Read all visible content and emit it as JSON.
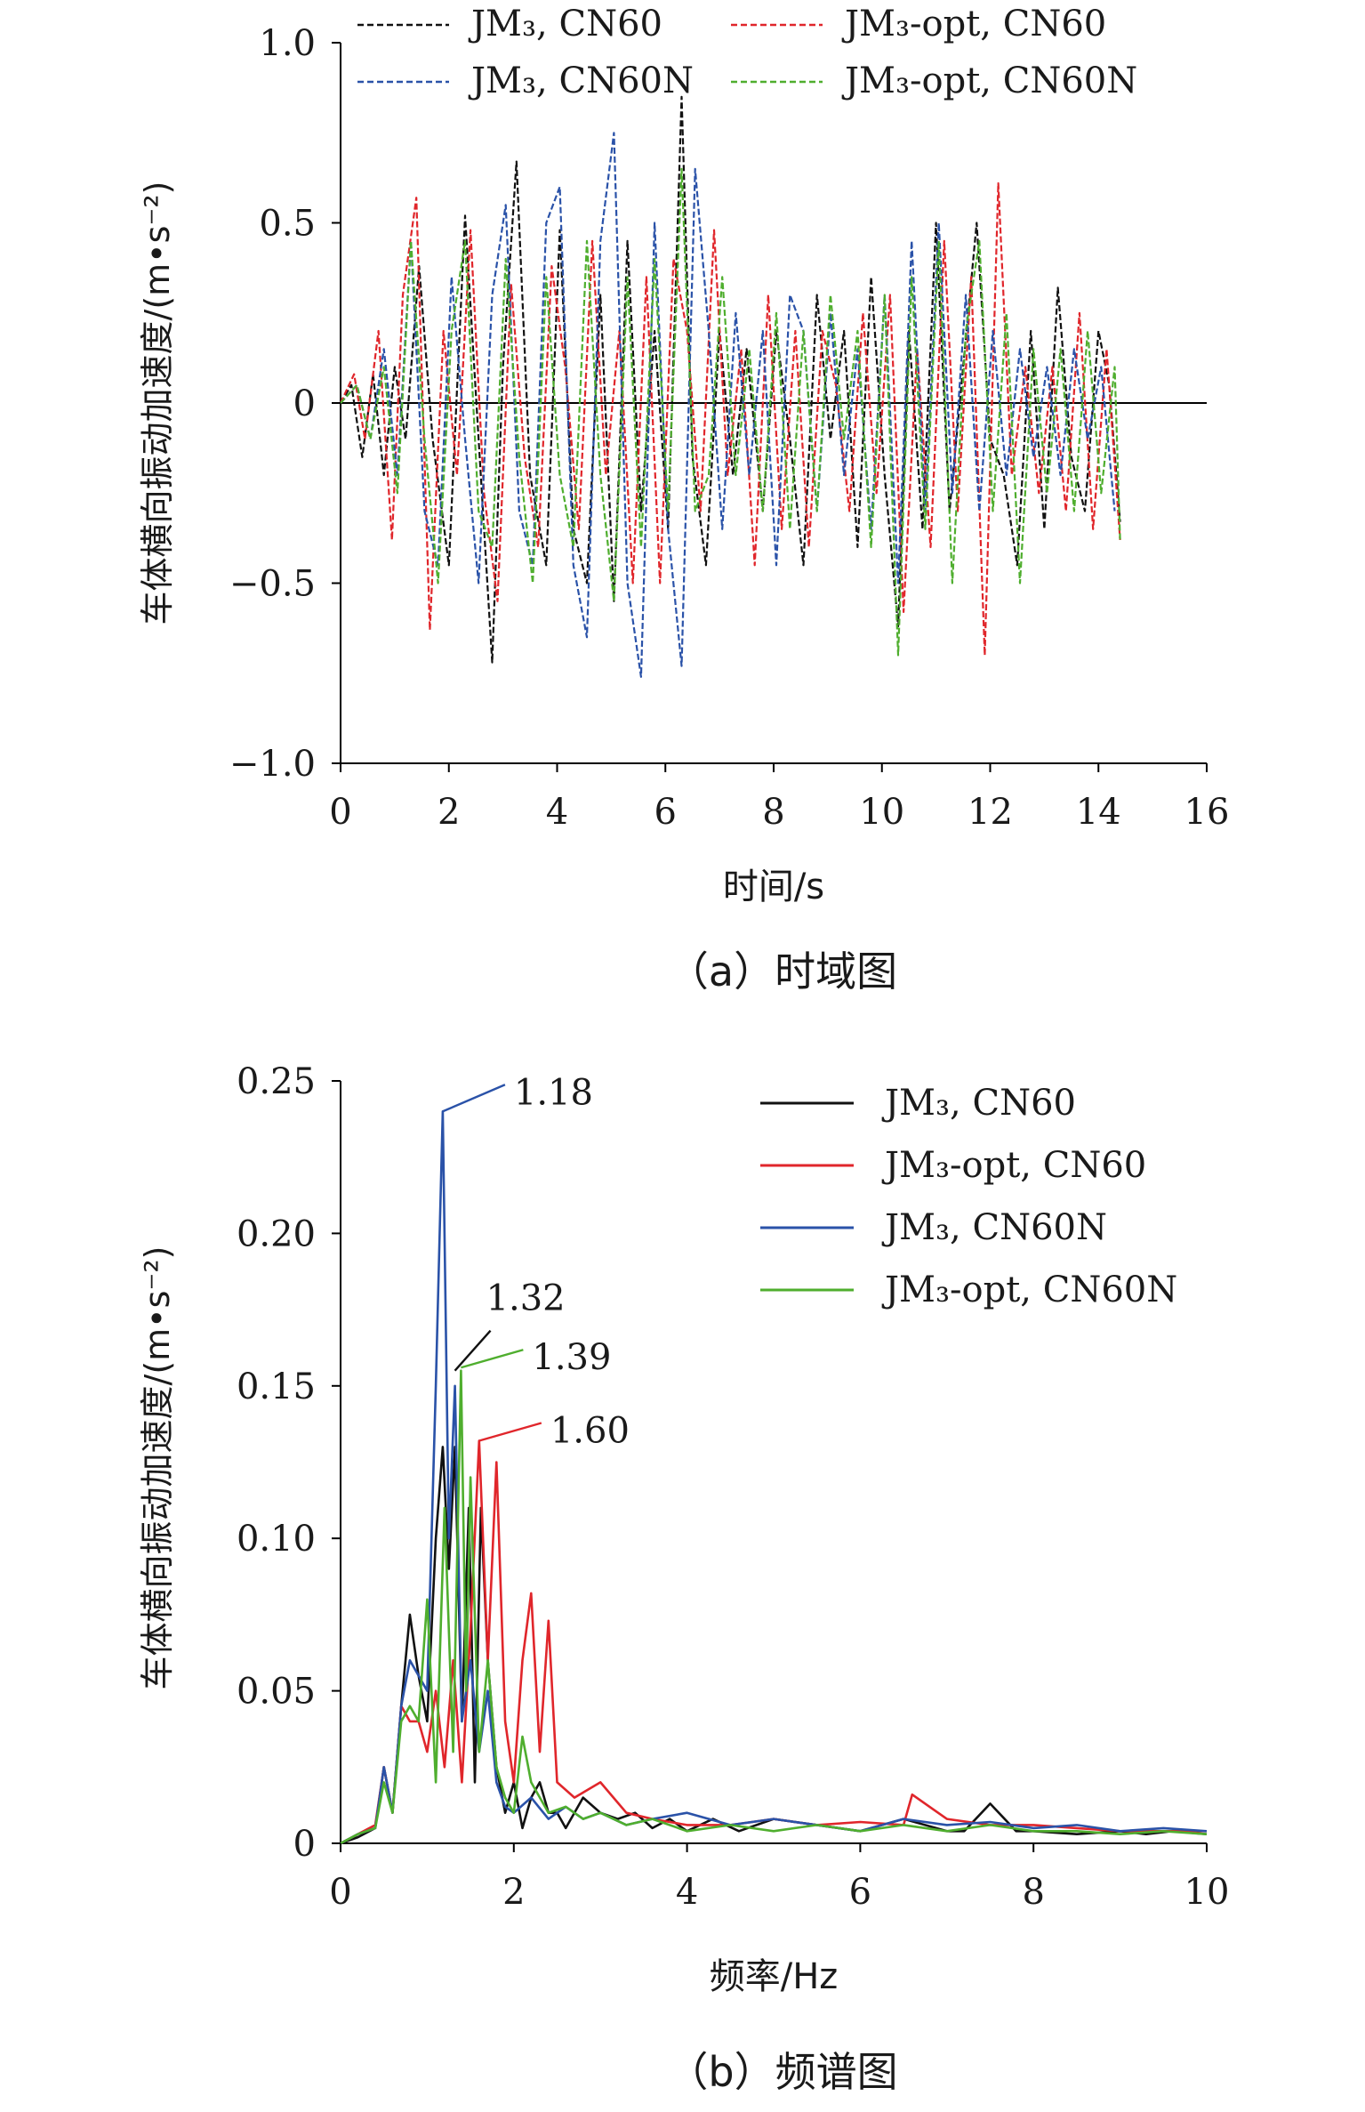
{
  "chart_data": [
    {
      "id": "a",
      "type": "line",
      "caption": "（a）时域图",
      "xlabel": "时间/s",
      "ylabel": "车体横向振动加速度/(m•s⁻²)",
      "xlim": [
        0,
        16
      ],
      "ylim": [
        -1.0,
        1.0
      ],
      "xticks": [
        "0",
        "2",
        "4",
        "6",
        "8",
        "10",
        "12",
        "14",
        "16"
      ],
      "yticks": [
        "1.0",
        "0.5",
        "0",
        "−0.5",
        "−1.0"
      ],
      "legend_position": "top",
      "line_style": "dashed",
      "series": [
        {
          "name": "JM₃, CN60",
          "color": "#111111",
          "x": [
            0.0,
            0.2,
            0.4,
            0.6,
            0.8,
            1.0,
            1.2,
            1.45,
            1.7,
            2.0,
            2.3,
            2.55,
            2.8,
            3.0,
            3.25,
            3.5,
            3.8,
            4.05,
            4.3,
            4.55,
            4.8,
            5.05,
            5.3,
            5.55,
            5.8,
            6.05,
            6.3,
            6.5,
            6.75,
            7.0,
            7.25,
            7.5,
            7.8,
            8.05,
            8.3,
            8.55,
            8.8,
            9.05,
            9.3,
            9.55,
            9.8,
            10.05,
            10.3,
            10.5,
            10.75,
            11.0,
            11.25,
            11.5,
            11.75,
            12.0,
            12.25,
            12.5,
            12.75,
            13.0,
            13.25,
            13.5,
            13.75,
            14.0,
            14.2,
            14.4
          ],
          "y": [
            0.0,
            0.05,
            -0.15,
            0.08,
            -0.2,
            0.1,
            -0.1,
            0.38,
            -0.1,
            -0.45,
            0.52,
            -0.1,
            -0.72,
            0.1,
            0.67,
            -0.2,
            -0.45,
            0.48,
            -0.35,
            -0.5,
            0.3,
            -0.55,
            0.45,
            -0.3,
            0.2,
            -0.35,
            0.85,
            -0.15,
            -0.45,
            0.2,
            -0.2,
            0.15,
            -0.3,
            0.2,
            -0.1,
            -0.45,
            0.3,
            -0.1,
            0.2,
            -0.4,
            0.35,
            -0.2,
            -0.62,
            0.2,
            -0.35,
            0.5,
            -0.3,
            0.1,
            0.5,
            -0.1,
            -0.2,
            -0.45,
            0.2,
            -0.35,
            0.32,
            -0.15,
            -0.3,
            0.2,
            0.05,
            -0.33
          ]
        },
        {
          "name": "JM₃-opt, CN60",
          "color": "#e0262b",
          "x": [
            0.0,
            0.25,
            0.45,
            0.7,
            0.95,
            1.15,
            1.4,
            1.65,
            1.9,
            2.15,
            2.4,
            2.65,
            2.9,
            3.15,
            3.4,
            3.65,
            3.9,
            4.15,
            4.4,
            4.65,
            4.9,
            5.15,
            5.4,
            5.65,
            5.9,
            6.15,
            6.4,
            6.65,
            6.9,
            7.15,
            7.4,
            7.65,
            7.9,
            8.15,
            8.4,
            8.65,
            8.9,
            9.15,
            9.4,
            9.65,
            9.9,
            10.15,
            10.4,
            10.65,
            10.9,
            11.15,
            11.4,
            11.65,
            11.9,
            12.15,
            12.4,
            12.65,
            12.9,
            13.15,
            13.4,
            13.65,
            13.9,
            14.15,
            14.4
          ],
          "y": [
            0.0,
            0.08,
            -0.1,
            0.2,
            -0.38,
            0.3,
            0.57,
            -0.63,
            0.2,
            -0.2,
            0.48,
            -0.25,
            -0.55,
            0.33,
            -0.15,
            -0.4,
            0.38,
            0.1,
            -0.35,
            0.45,
            -0.2,
            0.2,
            -0.5,
            0.35,
            -0.5,
            0.4,
            0.2,
            -0.3,
            0.48,
            -0.2,
            0.15,
            -0.45,
            0.3,
            -0.35,
            0.2,
            -0.4,
            0.2,
            0.05,
            -0.3,
            0.25,
            -0.25,
            0.3,
            -0.58,
            0.15,
            -0.4,
            0.45,
            -0.3,
            0.35,
            -0.7,
            0.61,
            -0.2,
            0.1,
            -0.25,
            0.1,
            -0.3,
            0.25,
            -0.35,
            0.15,
            -0.38
          ]
        },
        {
          "name": "JM₃, CN60N",
          "color": "#2a52a8",
          "x": [
            0.0,
            0.3,
            0.55,
            0.8,
            1.05,
            1.3,
            1.55,
            1.8,
            2.05,
            2.3,
            2.55,
            2.8,
            3.05,
            3.3,
            3.55,
            3.8,
            4.05,
            4.3,
            4.55,
            4.8,
            5.05,
            5.3,
            5.55,
            5.8,
            6.05,
            6.3,
            6.55,
            6.8,
            7.05,
            7.3,
            7.55,
            7.8,
            8.05,
            8.3,
            8.55,
            8.8,
            9.05,
            9.3,
            9.55,
            9.8,
            10.05,
            10.3,
            10.55,
            10.8,
            11.05,
            11.3,
            11.55,
            11.8,
            12.05,
            12.3,
            12.55,
            12.8,
            13.05,
            13.3,
            13.55,
            13.8,
            14.05,
            14.3
          ],
          "y": [
            0.0,
            0.05,
            -0.1,
            0.15,
            -0.2,
            0.45,
            -0.3,
            -0.45,
            0.35,
            -0.1,
            -0.5,
            0.3,
            0.55,
            -0.3,
            -0.45,
            0.5,
            0.6,
            -0.45,
            -0.65,
            0.45,
            0.75,
            -0.5,
            -0.76,
            0.5,
            -0.35,
            -0.73,
            0.65,
            0.2,
            -0.35,
            0.25,
            -0.2,
            0.2,
            -0.45,
            0.3,
            0.2,
            -0.3,
            0.25,
            -0.2,
            0.15,
            -0.35,
            0.3,
            -0.5,
            0.45,
            -0.3,
            0.5,
            -0.25,
            0.3,
            -0.3,
            0.2,
            -0.2,
            0.15,
            -0.15,
            0.1,
            -0.2,
            0.15,
            -0.1,
            0.1,
            -0.3
          ]
        },
        {
          "name": "JM₃-opt, CN60N",
          "color": "#4fae2e",
          "x": [
            0.0,
            0.3,
            0.55,
            0.8,
            1.05,
            1.3,
            1.55,
            1.8,
            2.05,
            2.3,
            2.55,
            2.8,
            3.05,
            3.3,
            3.55,
            3.8,
            4.05,
            4.3,
            4.55,
            4.8,
            5.05,
            5.3,
            5.55,
            5.8,
            6.05,
            6.3,
            6.55,
            6.8,
            7.05,
            7.3,
            7.55,
            7.8,
            8.05,
            8.3,
            8.55,
            8.8,
            9.05,
            9.3,
            9.55,
            9.8,
            10.05,
            10.3,
            10.55,
            10.8,
            11.05,
            11.3,
            11.55,
            11.8,
            12.05,
            12.3,
            12.55,
            12.8,
            13.05,
            13.3,
            13.55,
            13.8,
            14.05,
            14.3,
            14.4
          ],
          "y": [
            0.0,
            0.05,
            -0.1,
            0.1,
            -0.25,
            0.45,
            -0.1,
            -0.5,
            0.2,
            0.45,
            -0.3,
            -0.4,
            0.4,
            -0.15,
            -0.5,
            0.35,
            -0.2,
            -0.4,
            0.45,
            -0.2,
            -0.55,
            0.35,
            -0.4,
            0.4,
            -0.3,
            0.65,
            -0.3,
            -0.2,
            0.35,
            -0.2,
            0.15,
            -0.3,
            0.25,
            -0.35,
            0.2,
            -0.3,
            0.3,
            -0.1,
            0.2,
            -0.4,
            0.3,
            -0.7,
            0.35,
            -0.35,
            0.45,
            -0.5,
            0.2,
            0.45,
            -0.3,
            0.25,
            -0.5,
            0.15,
            -0.25,
            0.15,
            -0.3,
            0.2,
            -0.25,
            0.1,
            -0.38
          ]
        }
      ]
    },
    {
      "id": "b",
      "type": "line",
      "caption": "（b）频谱图",
      "xlabel": "频率/Hz",
      "ylabel": "车体横向振动加速度/(m•s⁻²)",
      "xlim": [
        0,
        10
      ],
      "ylim": [
        0,
        0.25
      ],
      "xticks": [
        "0",
        "2",
        "4",
        "6",
        "8",
        "10"
      ],
      "yticks": [
        "0.25",
        "0.20",
        "0.15",
        "0.10",
        "0.05",
        "0"
      ],
      "legend_position": "top-right",
      "line_style": "solid",
      "annotations": [
        {
          "text": "1.18",
          "x": 1.18,
          "y": 0.24,
          "color": "#2a52a8"
        },
        {
          "text": "1.32",
          "x": 1.32,
          "y": 0.155,
          "color": "#111111"
        },
        {
          "text": "1.39",
          "x": 1.39,
          "y": 0.156,
          "color": "#4fae2e"
        },
        {
          "text": "1.60",
          "x": 1.6,
          "y": 0.132,
          "color": "#e0262b"
        }
      ],
      "series": [
        {
          "name": "JM₃, CN60",
          "color": "#111111",
          "x": [
            0,
            0.2,
            0.4,
            0.5,
            0.6,
            0.7,
            0.8,
            0.9,
            1.0,
            1.1,
            1.18,
            1.25,
            1.32,
            1.4,
            1.48,
            1.55,
            1.62,
            1.7,
            1.8,
            1.9,
            2.0,
            2.1,
            2.2,
            2.3,
            2.4,
            2.5,
            2.6,
            2.8,
            3.0,
            3.2,
            3.4,
            3.6,
            3.8,
            4.0,
            4.3,
            4.6,
            5.0,
            5.5,
            6.0,
            6.5,
            7.0,
            7.2,
            7.5,
            7.8,
            8.0,
            8.5,
            9.0,
            9.3,
            9.6,
            10.0
          ],
          "y": [
            0,
            0.002,
            0.005,
            0.025,
            0.01,
            0.045,
            0.075,
            0.055,
            0.04,
            0.1,
            0.13,
            0.09,
            0.13,
            0.04,
            0.11,
            0.02,
            0.11,
            0.06,
            0.025,
            0.01,
            0.02,
            0.005,
            0.015,
            0.02,
            0.01,
            0.01,
            0.005,
            0.015,
            0.01,
            0.008,
            0.01,
            0.005,
            0.008,
            0.004,
            0.008,
            0.004,
            0.008,
            0.006,
            0.004,
            0.008,
            0.004,
            0.004,
            0.013,
            0.004,
            0.004,
            0.003,
            0.004,
            0.003,
            0.004,
            0.003
          ]
        },
        {
          "name": "JM₃-opt, CN60",
          "color": "#e0262b",
          "x": [
            0,
            0.2,
            0.4,
            0.5,
            0.6,
            0.7,
            0.8,
            0.9,
            1.0,
            1.1,
            1.2,
            1.3,
            1.4,
            1.5,
            1.6,
            1.7,
            1.8,
            1.9,
            2.0,
            2.1,
            2.2,
            2.3,
            2.4,
            2.5,
            2.7,
            3.0,
            3.3,
            3.6,
            4.0,
            4.5,
            5.0,
            5.5,
            6.0,
            6.5,
            6.6,
            7.0,
            7.5,
            8.0,
            8.5,
            9.0,
            9.5,
            10.0
          ],
          "y": [
            0,
            0.003,
            0.006,
            0.025,
            0.01,
            0.045,
            0.04,
            0.04,
            0.03,
            0.05,
            0.025,
            0.06,
            0.02,
            0.07,
            0.132,
            0.06,
            0.125,
            0.04,
            0.02,
            0.06,
            0.082,
            0.03,
            0.073,
            0.02,
            0.015,
            0.02,
            0.01,
            0.008,
            0.006,
            0.006,
            0.008,
            0.006,
            0.007,
            0.006,
            0.016,
            0.008,
            0.006,
            0.006,
            0.005,
            0.004,
            0.004,
            0.004
          ]
        },
        {
          "name": "JM₃, CN60N",
          "color": "#2a52a8",
          "x": [
            0,
            0.2,
            0.4,
            0.5,
            0.6,
            0.7,
            0.8,
            0.9,
            1.0,
            1.1,
            1.18,
            1.25,
            1.32,
            1.4,
            1.5,
            1.6,
            1.7,
            1.8,
            1.9,
            2.0,
            2.2,
            2.4,
            2.6,
            2.8,
            3.0,
            3.3,
            3.6,
            4.0,
            4.5,
            5.0,
            5.5,
            6.0,
            6.5,
            7.0,
            7.5,
            8.0,
            8.5,
            9.0,
            9.5,
            10.0
          ],
          "y": [
            0,
            0.003,
            0.005,
            0.025,
            0.01,
            0.045,
            0.06,
            0.055,
            0.05,
            0.15,
            0.24,
            0.1,
            0.15,
            0.04,
            0.06,
            0.03,
            0.05,
            0.02,
            0.012,
            0.01,
            0.015,
            0.008,
            0.012,
            0.008,
            0.01,
            0.006,
            0.008,
            0.01,
            0.006,
            0.008,
            0.006,
            0.004,
            0.008,
            0.006,
            0.007,
            0.005,
            0.006,
            0.004,
            0.005,
            0.004
          ]
        },
        {
          "name": "JM₃-opt, CN60N",
          "color": "#4fae2e",
          "x": [
            0,
            0.2,
            0.4,
            0.5,
            0.6,
            0.7,
            0.8,
            0.9,
            1.0,
            1.1,
            1.2,
            1.3,
            1.39,
            1.45,
            1.5,
            1.6,
            1.7,
            1.8,
            1.9,
            2.0,
            2.1,
            2.2,
            2.4,
            2.6,
            2.8,
            3.0,
            3.3,
            3.6,
            4.0,
            4.5,
            5.0,
            5.5,
            6.0,
            6.5,
            7.0,
            7.5,
            8.0,
            8.5,
            9.0,
            9.5,
            10.0
          ],
          "y": [
            0,
            0.003,
            0.005,
            0.02,
            0.01,
            0.04,
            0.045,
            0.04,
            0.08,
            0.02,
            0.11,
            0.03,
            0.155,
            0.05,
            0.12,
            0.03,
            0.06,
            0.025,
            0.015,
            0.01,
            0.035,
            0.02,
            0.01,
            0.012,
            0.008,
            0.01,
            0.006,
            0.008,
            0.004,
            0.006,
            0.004,
            0.006,
            0.004,
            0.006,
            0.004,
            0.006,
            0.004,
            0.004,
            0.003,
            0.004,
            0.003
          ]
        }
      ]
    }
  ]
}
